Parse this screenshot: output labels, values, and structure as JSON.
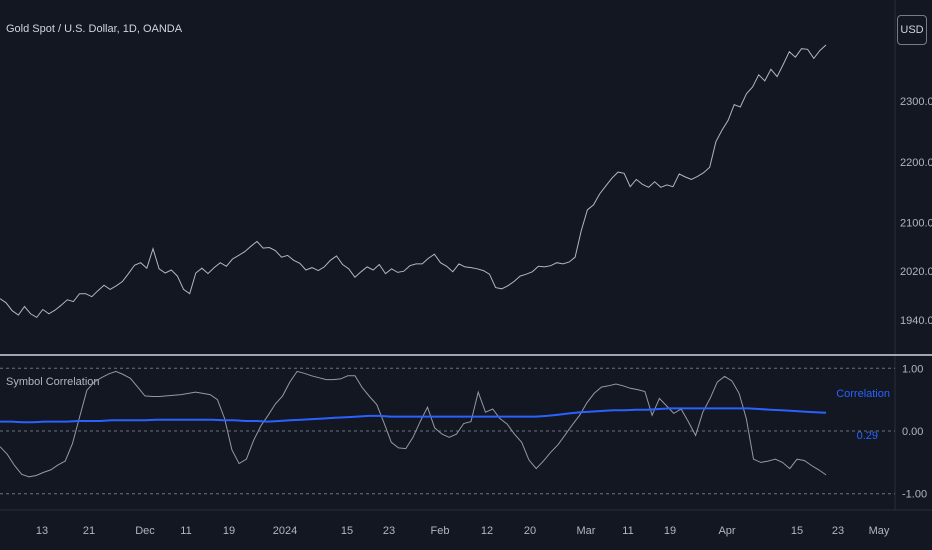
{
  "header": {
    "symbol_title": "Gold Spot / U.S. Dollar, 1D, OANDA"
  },
  "currency_button": {
    "label": "USD"
  },
  "indicator": {
    "title": "Symbol Correlation",
    "legend_label": "Correlation",
    "value_label": "0.29"
  },
  "colors": {
    "background": "#131722",
    "price_line": "#b2b5be",
    "correlation_line": "#2962ff",
    "raw_correlation_line": "#9598a1",
    "grid_dashed": "#9598a1",
    "separator": "#d1d4dc"
  },
  "chart_data": [
    {
      "type": "line",
      "title": "Gold Spot / U.S. Dollar, 1D, OANDA",
      "ylabel": "USD",
      "y_ticks": [
        "1940.000",
        "2020.000",
        "2100.000",
        "2200.000",
        "2300.000"
      ],
      "ylim": [
        1920,
        2420
      ],
      "x_ticks": [
        "13",
        "21",
        "Dec",
        "11",
        "19",
        "2024",
        "15",
        "23",
        "Feb",
        "12",
        "20",
        "Mar",
        "11",
        "19",
        "Apr",
        "15",
        "23",
        "May"
      ],
      "grid": false,
      "series": [
        {
          "values": [
            1975,
            1968,
            1955,
            1948,
            1962,
            1950,
            1944,
            1957,
            1950,
            1956,
            1964,
            1973,
            1970,
            1983,
            1983,
            1978,
            1988,
            1997,
            1990,
            1996,
            2003,
            2016,
            2030,
            2034,
            2025,
            2057,
            2024,
            2017,
            2022,
            2012,
            1990,
            1983,
            2017,
            2025,
            2016,
            2026,
            2034,
            2028,
            2040,
            2046,
            2052,
            2061,
            2069,
            2058,
            2059,
            2054,
            2043,
            2046,
            2038,
            2033,
            2022,
            2026,
            2021,
            2027,
            2038,
            2045,
            2031,
            2024,
            2010,
            2019,
            2027,
            2022,
            2031,
            2016,
            2024,
            2018,
            2020,
            2029,
            2032,
            2032,
            2041,
            2048,
            2034,
            2028,
            2019,
            2032,
            2027,
            2026,
            2024,
            2021,
            2015,
            1993,
            1991,
            1996,
            2003,
            2012,
            2015,
            2019,
            2028,
            2027,
            2029,
            2034,
            2032,
            2035,
            2043,
            2087,
            2121,
            2129,
            2147,
            2160,
            2173,
            2183,
            2181,
            2159,
            2171,
            2163,
            2158,
            2167,
            2158,
            2162,
            2159,
            2180,
            2175,
            2171,
            2176,
            2182,
            2191,
            2233,
            2252,
            2268,
            2294,
            2290,
            2312,
            2323,
            2343,
            2333,
            2352,
            2340,
            2360,
            2381,
            2372,
            2386,
            2385,
            2370,
            2383,
            2392
          ],
          "xlim": [
            0,
            138
          ]
        }
      ]
    },
    {
      "type": "line",
      "title": "Symbol Correlation",
      "y_ticks": [
        "1.00",
        "0.00",
        "-1.00"
      ],
      "ylim": [
        -1.1,
        1.1
      ],
      "reference_lines": [
        1.0,
        0.0,
        -1.0
      ],
      "current_value_label": "0.29",
      "series": [
        {
          "name": "Correlation",
          "values": [
            0.15,
            0.15,
            0.14,
            0.14,
            0.15,
            0.15,
            0.15,
            0.16,
            0.16,
            0.16,
            0.17,
            0.17,
            0.17,
            0.17,
            0.18,
            0.18,
            0.18,
            0.18,
            0.18,
            0.18,
            0.17,
            0.17,
            0.16,
            0.16,
            0.15,
            0.16,
            0.17,
            0.18,
            0.19,
            0.2,
            0.21,
            0.22,
            0.23,
            0.24,
            0.24,
            0.23,
            0.23,
            0.23,
            0.23,
            0.23,
            0.23,
            0.23,
            0.23,
            0.23,
            0.23,
            0.23,
            0.23,
            0.23,
            0.23,
            0.24,
            0.26,
            0.28,
            0.3,
            0.31,
            0.32,
            0.33,
            0.33,
            0.34,
            0.34,
            0.35,
            0.36,
            0.36,
            0.36,
            0.36,
            0.36,
            0.36,
            0.36,
            0.36,
            0.35,
            0.34,
            0.33,
            0.32,
            0.31,
            0.3,
            0.29
          ],
          "xlim": [
            0,
            138
          ],
          "x_step": 1.865
        },
        {
          "name": "",
          "values": [
            -0.25,
            -0.37,
            -0.55,
            -0.69,
            -0.73,
            -0.71,
            -0.66,
            -0.62,
            -0.54,
            -0.48,
            -0.2,
            0.23,
            0.65,
            0.78,
            0.85,
            0.91,
            0.95,
            0.9,
            0.84,
            0.7,
            0.56,
            0.55,
            0.55,
            0.56,
            0.57,
            0.58,
            0.6,
            0.62,
            0.6,
            0.58,
            0.5,
            0.2,
            -0.3,
            -0.52,
            -0.45,
            -0.15,
            0.08,
            0.25,
            0.43,
            0.56,
            0.78,
            0.95,
            0.92,
            0.88,
            0.85,
            0.82,
            0.82,
            0.83,
            0.88,
            0.88,
            0.69,
            0.55,
            0.42,
            0.13,
            -0.18,
            -0.27,
            -0.28,
            -0.1,
            0.15,
            0.38,
            0.05,
            -0.05,
            -0.1,
            -0.05,
            0.12,
            0.15,
            0.62,
            0.3,
            0.35,
            0.2,
            0.11,
            -0.05,
            -0.18,
            -0.46,
            -0.6,
            -0.48,
            -0.34,
            -0.22,
            -0.06,
            0.1,
            0.25,
            0.45,
            0.6,
            0.7,
            0.72,
            0.75,
            0.72,
            0.68,
            0.66,
            0.63,
            0.25,
            0.52,
            0.4,
            0.28,
            0.35,
            0.15,
            -0.07,
            0.3,
            0.52,
            0.78,
            0.87,
            0.8,
            0.6,
            0.2,
            -0.45,
            -0.5,
            -0.48,
            -0.45,
            -0.5,
            -0.6,
            -0.45,
            -0.47,
            -0.55,
            -0.62,
            -0.7
          ],
          "xlim": [
            0,
            138
          ],
          "x_step": 1.2
        }
      ]
    }
  ]
}
